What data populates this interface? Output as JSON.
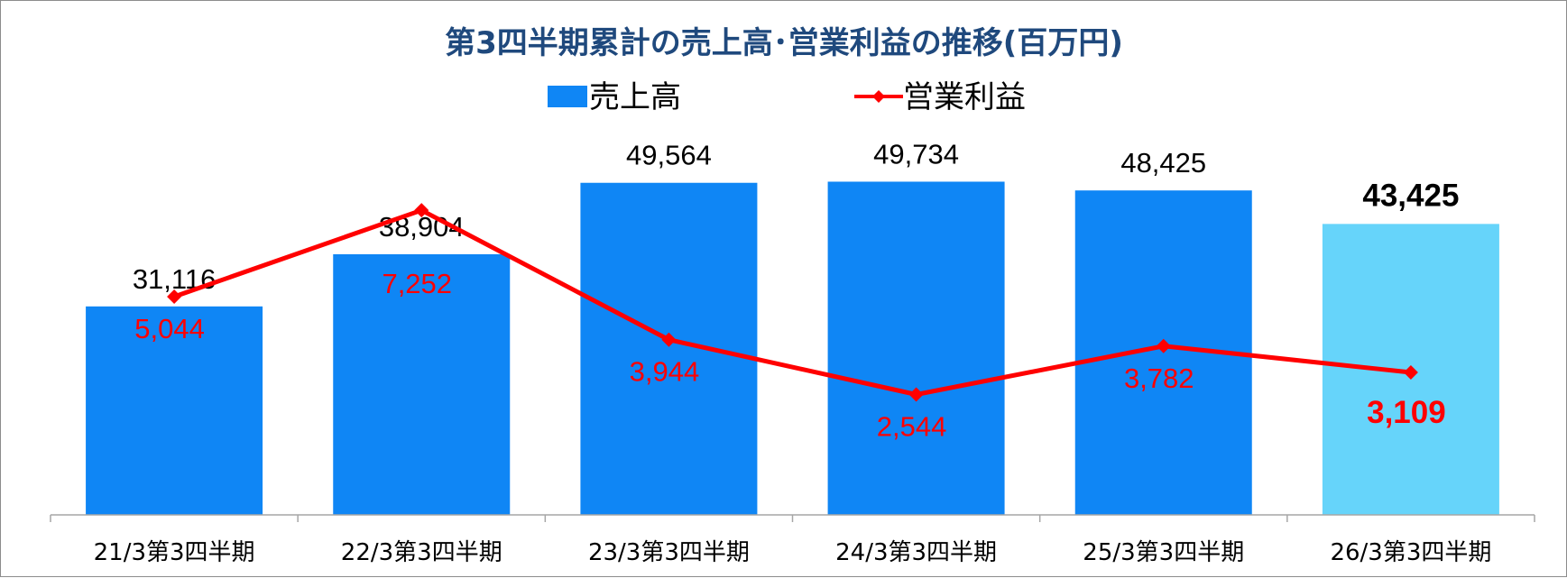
{
  "chart_data": {
    "type": "bar",
    "title": "第3四半期累計の売上高･営業利益の推移(百万円)",
    "categories": [
      "21/3第3四半期",
      "22/3第3四半期",
      "23/3第3四半期",
      "24/3第3四半期",
      "25/3第3四半期",
      "26/3第3四半期"
    ],
    "series": [
      {
        "name": "売上高",
        "type": "bar",
        "values": [
          31116,
          38904,
          49564,
          49734,
          48425,
          43425
        ],
        "labels": [
          "31,116",
          "38,904",
          "49,564",
          "49,734",
          "48,425",
          "43,425"
        ],
        "color": "#0f86f5",
        "highlight_color": "#66d4fa",
        "highlight_index": 5
      },
      {
        "name": "営業利益",
        "type": "line",
        "values": [
          5044,
          7252,
          3944,
          2544,
          3782,
          3109
        ],
        "labels": [
          "5,044",
          "7,252",
          "3,944",
          "2,544",
          "3,782",
          "3,109"
        ],
        "color": "#ff0000",
        "highlight_index": 5
      }
    ],
    "legend_position": "top",
    "grid": false
  }
}
